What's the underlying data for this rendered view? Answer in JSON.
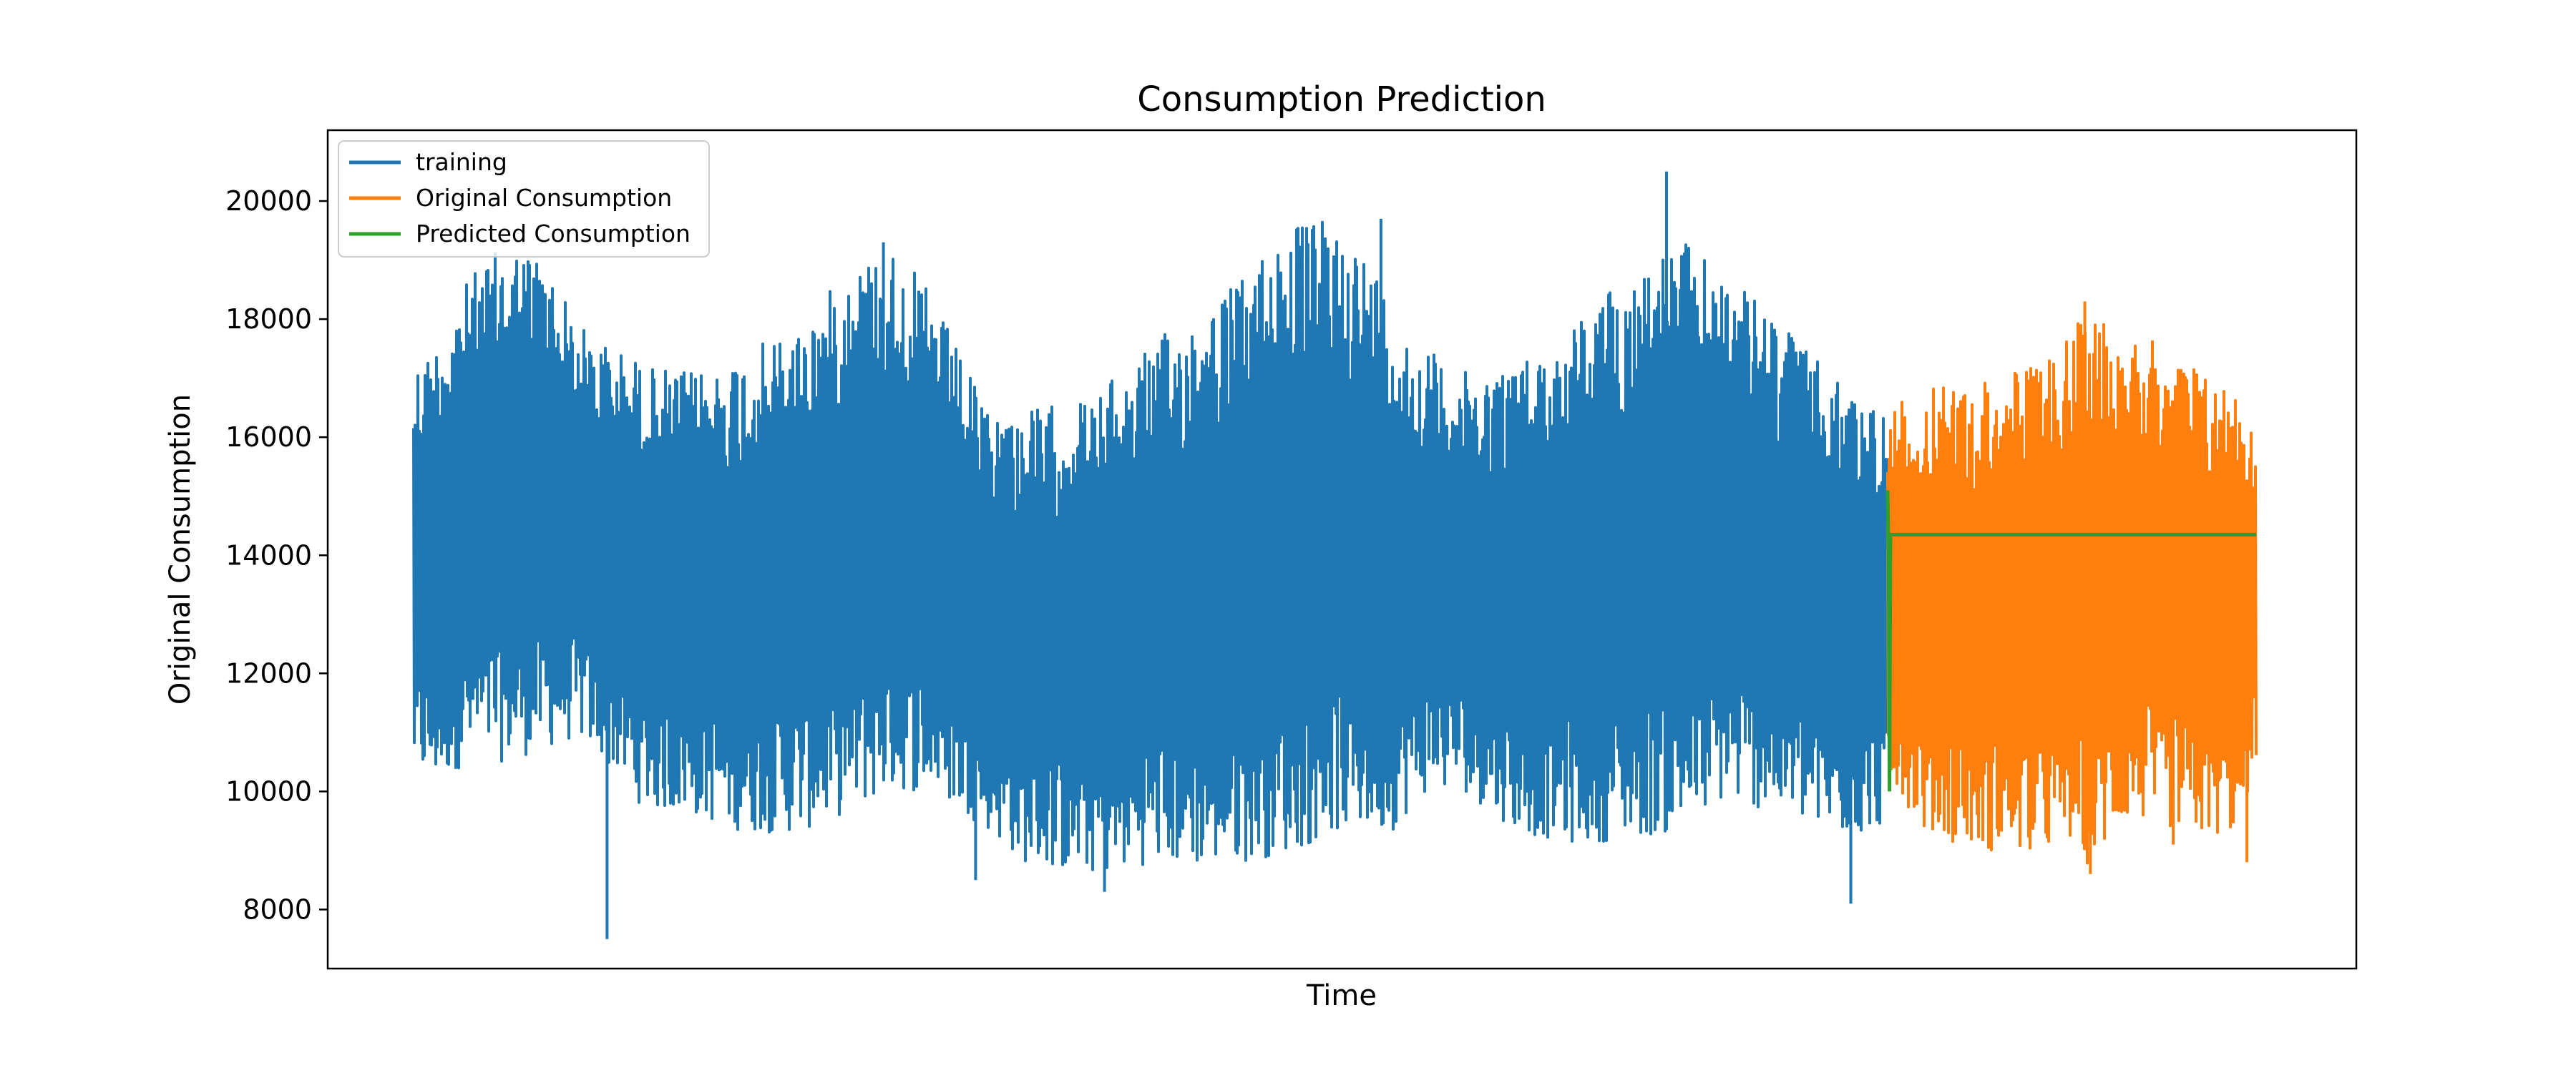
{
  "chart_data": {
    "type": "line",
    "title": "Consumption Prediction",
    "xlabel": "Time",
    "ylabel": "Original Consumption",
    "xlim": [
      0,
      1
    ],
    "ylim": [
      7000,
      21200
    ],
    "yticks": [
      8000,
      10000,
      12000,
      14000,
      16000,
      18000,
      20000
    ],
    "xticks": [],
    "grid": false,
    "legend_position": "top-left",
    "series": [
      {
        "name": "training",
        "color": "#1f77b4",
        "x_start": 0.0,
        "x_end": 0.8,
        "low_envelope": [
          [
            0.0,
            10300
          ],
          [
            0.01,
            10100
          ],
          [
            0.03,
            10500
          ],
          [
            0.05,
            10500
          ],
          [
            0.07,
            10700
          ],
          [
            0.09,
            10900
          ],
          [
            0.11,
            10300
          ],
          [
            0.125,
            9700
          ],
          [
            0.15,
            9600
          ],
          [
            0.18,
            9300
          ],
          [
            0.21,
            9300
          ],
          [
            0.24,
            9700
          ],
          [
            0.26,
            10000
          ],
          [
            0.28,
            10000
          ],
          [
            0.31,
            9400
          ],
          [
            0.33,
            8800
          ],
          [
            0.36,
            8600
          ],
          [
            0.38,
            8600
          ],
          [
            0.4,
            8800
          ],
          [
            0.42,
            8700
          ],
          [
            0.45,
            8800
          ],
          [
            0.48,
            9000
          ],
          [
            0.5,
            9300
          ],
          [
            0.53,
            9300
          ],
          [
            0.55,
            10000
          ],
          [
            0.57,
            10000
          ],
          [
            0.6,
            9300
          ],
          [
            0.63,
            9100
          ],
          [
            0.66,
            9200
          ],
          [
            0.69,
            9300
          ],
          [
            0.71,
            9800
          ],
          [
            0.73,
            9700
          ],
          [
            0.75,
            9500
          ],
          [
            0.77,
            9200
          ],
          [
            0.79,
            9300
          ],
          [
            0.8,
            9500
          ]
        ],
        "high_envelope": [
          [
            0.0,
            17300
          ],
          [
            0.01,
            17500
          ],
          [
            0.03,
            18700
          ],
          [
            0.05,
            19300
          ],
          [
            0.07,
            19100
          ],
          [
            0.09,
            17900
          ],
          [
            0.11,
            17500
          ],
          [
            0.13,
            17200
          ],
          [
            0.15,
            17100
          ],
          [
            0.17,
            17300
          ],
          [
            0.19,
            17600
          ],
          [
            0.21,
            17900
          ],
          [
            0.24,
            19000
          ],
          [
            0.26,
            19200
          ],
          [
            0.28,
            18500
          ],
          [
            0.31,
            16500
          ],
          [
            0.34,
            16500
          ],
          [
            0.37,
            16700
          ],
          [
            0.39,
            17300
          ],
          [
            0.41,
            17800
          ],
          [
            0.43,
            18300
          ],
          [
            0.45,
            18700
          ],
          [
            0.47,
            19600
          ],
          [
            0.5,
            19700
          ],
          [
            0.52,
            19000
          ],
          [
            0.54,
            17700
          ],
          [
            0.57,
            17100
          ],
          [
            0.6,
            17300
          ],
          [
            0.62,
            17600
          ],
          [
            0.64,
            18300
          ],
          [
            0.67,
            19000
          ],
          [
            0.69,
            19300
          ],
          [
            0.71,
            18800
          ],
          [
            0.73,
            18300
          ],
          [
            0.75,
            17700
          ],
          [
            0.77,
            17000
          ],
          [
            0.79,
            16600
          ],
          [
            0.8,
            16600
          ]
        ],
        "spikes": [
          [
            0.105,
            7500
          ],
          [
            0.78,
            8100
          ],
          [
            0.68,
            20500
          ],
          [
            0.525,
            19700
          ],
          [
            0.255,
            19300
          ],
          [
            0.305,
            8500
          ],
          [
            0.375,
            8300
          ]
        ]
      },
      {
        "name": "Original Consumption",
        "color": "#ff7f0e",
        "x_start": 0.8,
        "x_end": 1.0,
        "low_envelope": [
          [
            0.8,
            10300
          ],
          [
            0.82,
            9300
          ],
          [
            0.85,
            9000
          ],
          [
            0.88,
            8900
          ],
          [
            0.9,
            9100
          ],
          [
            0.91,
            8700
          ],
          [
            0.93,
            9500
          ],
          [
            0.95,
            9400
          ],
          [
            0.97,
            9200
          ],
          [
            0.99,
            9300
          ],
          [
            1.0,
            10500
          ]
        ],
        "high_envelope": [
          [
            0.8,
            16500
          ],
          [
            0.82,
            16800
          ],
          [
            0.84,
            16900
          ],
          [
            0.86,
            17100
          ],
          [
            0.88,
            17200
          ],
          [
            0.9,
            17800
          ],
          [
            0.91,
            18200
          ],
          [
            0.93,
            17900
          ],
          [
            0.95,
            17500
          ],
          [
            0.97,
            17200
          ],
          [
            0.99,
            16800
          ],
          [
            1.0,
            16200
          ]
        ],
        "spikes": [
          [
            0.91,
            8600
          ],
          [
            0.955,
            9100
          ],
          [
            0.995,
            8800
          ],
          [
            0.907,
            18300
          ]
        ]
      },
      {
        "name": "Predicted Consumption",
        "color": "#2ca02c",
        "points": [
          [
            0.8,
            15100
          ],
          [
            0.8005,
            14000
          ],
          [
            0.801,
            10000
          ],
          [
            0.8015,
            14350
          ],
          [
            1.0,
            14350
          ]
        ]
      }
    ]
  }
}
